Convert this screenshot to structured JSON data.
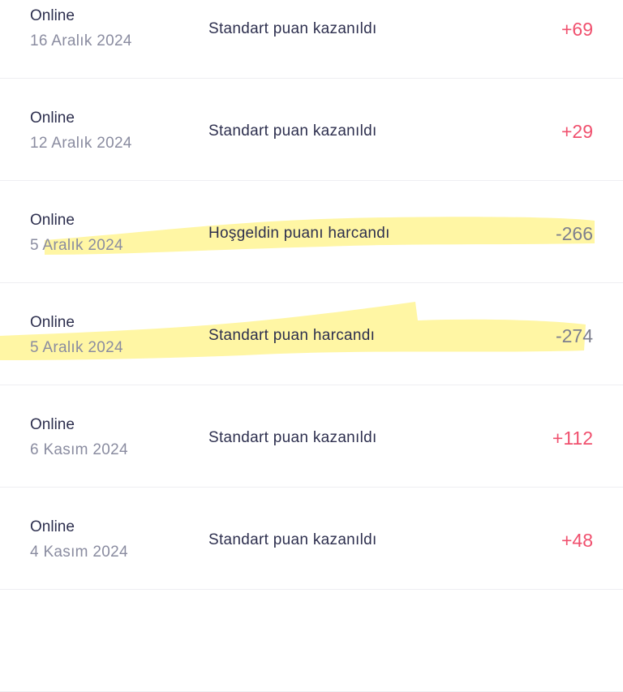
{
  "transactions": [
    {
      "channel": "Online",
      "date": "16 Aralık 2024",
      "description": "Standart puan kazanıldı",
      "amount": "+69",
      "type": "earned"
    },
    {
      "channel": "Online",
      "date": "12 Aralık 2024",
      "description": "Standart puan kazanıldı",
      "amount": "+29",
      "type": "earned"
    },
    {
      "channel": "Online",
      "date": "5 Aralık 2024",
      "description": "Hoşgeldin puanı harcandı",
      "amount": "-266",
      "type": "spent",
      "highlighted": true
    },
    {
      "channel": "Online",
      "date": "5 Aralık 2024",
      "description": "Standart puan harcandı",
      "amount": "-274",
      "type": "spent",
      "highlighted": true
    },
    {
      "channel": "Online",
      "date": "6 Kasım 2024",
      "description": "Standart puan kazanıldı",
      "amount": "+112",
      "type": "earned"
    },
    {
      "channel": "Online",
      "date": "4 Kasım 2024",
      "description": "Standart puan kazanıldı",
      "amount": "+48",
      "type": "earned"
    }
  ],
  "colors": {
    "earned": "#f0506e",
    "spent": "#7d7f8e",
    "highlight": "#fff59a",
    "text": "#2d2f4e",
    "muted": "#8a8ca0"
  }
}
